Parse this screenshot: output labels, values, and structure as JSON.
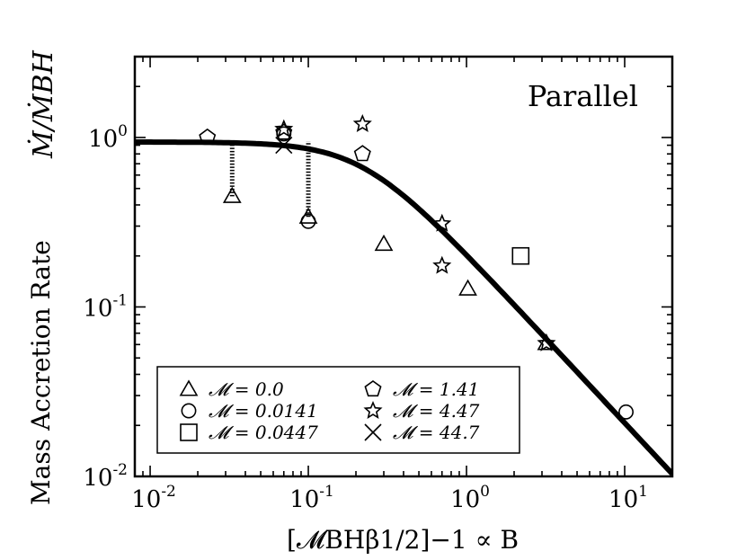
{
  "chart_data": {
    "type": "scatter",
    "title": "",
    "annotation": "Parallel",
    "xlabel": "[𝓜BHβ1/2]−1 ∝ B",
    "ylabel": "Mass Accretion Rate",
    "ylabel_unit": "Ṁ/ṀBH",
    "xscale": "log",
    "yscale": "log",
    "xlim": [
      0.008,
      20
    ],
    "ylim": [
      0.01,
      3
    ],
    "x_ticks": [
      {
        "value": 0.01,
        "mantissa": "10",
        "exp": "-2"
      },
      {
        "value": 0.1,
        "mantissa": "10",
        "exp": "-1"
      },
      {
        "value": 1,
        "mantissa": "10",
        "exp": "0"
      },
      {
        "value": 10,
        "mantissa": "10",
        "exp": "1"
      }
    ],
    "y_ticks": [
      {
        "value": 0.01,
        "mantissa": "10",
        "exp": "-2"
      },
      {
        "value": 0.1,
        "mantissa": "10",
        "exp": "-1"
      },
      {
        "value": 1,
        "mantissa": "10",
        "exp": "0"
      }
    ],
    "grid": false,
    "legend_position": "lower-left",
    "series": [
      {
        "name": "𝓜 = 0.0",
        "marker": "triangle",
        "points": [
          [
            0.033,
            0.45
          ],
          [
            0.1,
            0.34
          ],
          [
            0.3,
            0.235
          ],
          [
            1.02,
            0.128
          ],
          [
            3.2,
            0.061
          ]
        ]
      },
      {
        "name": "𝓜 = 0.0141",
        "marker": "circle",
        "points": [
          [
            0.07,
            1.05
          ],
          [
            0.1,
            0.32
          ],
          [
            10.2,
            0.024
          ]
        ]
      },
      {
        "name": "𝓜 = 0.0447",
        "marker": "square",
        "points": [
          [
            2.2,
            0.2
          ]
        ]
      },
      {
        "name": "𝓜 = 1.41",
        "marker": "pentagon",
        "points": [
          [
            0.023,
            1.0
          ],
          [
            0.22,
            0.8
          ],
          [
            0.07,
            1.07
          ]
        ]
      },
      {
        "name": "𝓜 = 4.47",
        "marker": "star",
        "points": [
          [
            0.07,
            1.12
          ],
          [
            0.22,
            1.2
          ],
          [
            0.7,
            0.31
          ],
          [
            0.7,
            0.175
          ],
          [
            3.2,
            0.061
          ]
        ]
      },
      {
        "name": "𝓜 = 44.7",
        "marker": "x",
        "points": [
          [
            0.07,
            0.9
          ]
        ]
      }
    ],
    "error_bars": [
      {
        "x": 0.033,
        "y_low": 0.45,
        "y_high": 0.95
      },
      {
        "x": 0.1,
        "y_low": 0.34,
        "y_high": 0.95
      }
    ],
    "model_curve": {
      "x_range": [
        0.008,
        20
      ],
      "y_at_min": 0.94,
      "y_at_max": 0.011
    }
  }
}
